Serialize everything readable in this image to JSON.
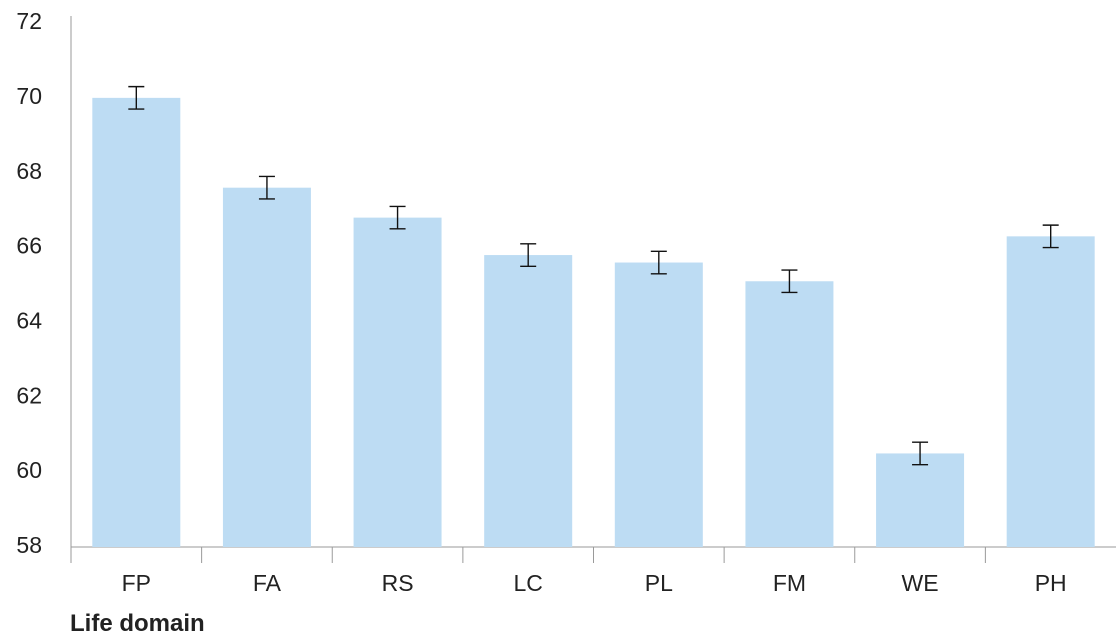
{
  "chart_data": {
    "type": "bar",
    "xlabel": "Life domain",
    "ylabel": "",
    "ylim": [
      58,
      72
    ],
    "yticks": [
      58,
      60,
      62,
      64,
      66,
      68,
      70,
      72
    ],
    "categories": [
      "FP",
      "FA",
      "RS",
      "LC",
      "PL",
      "FM",
      "WE",
      "PH"
    ],
    "values": [
      70.0,
      67.6,
      66.8,
      65.8,
      65.6,
      65.1,
      60.5,
      66.3
    ],
    "error_low": [
      69.7,
      67.3,
      66.5,
      65.5,
      65.3,
      64.8,
      60.2,
      66.0
    ],
    "error_high": [
      70.3,
      67.9,
      67.1,
      66.1,
      65.9,
      65.4,
      60.8,
      66.6
    ],
    "grid": false,
    "legend": "none",
    "bar_color": "#bddcf3"
  }
}
